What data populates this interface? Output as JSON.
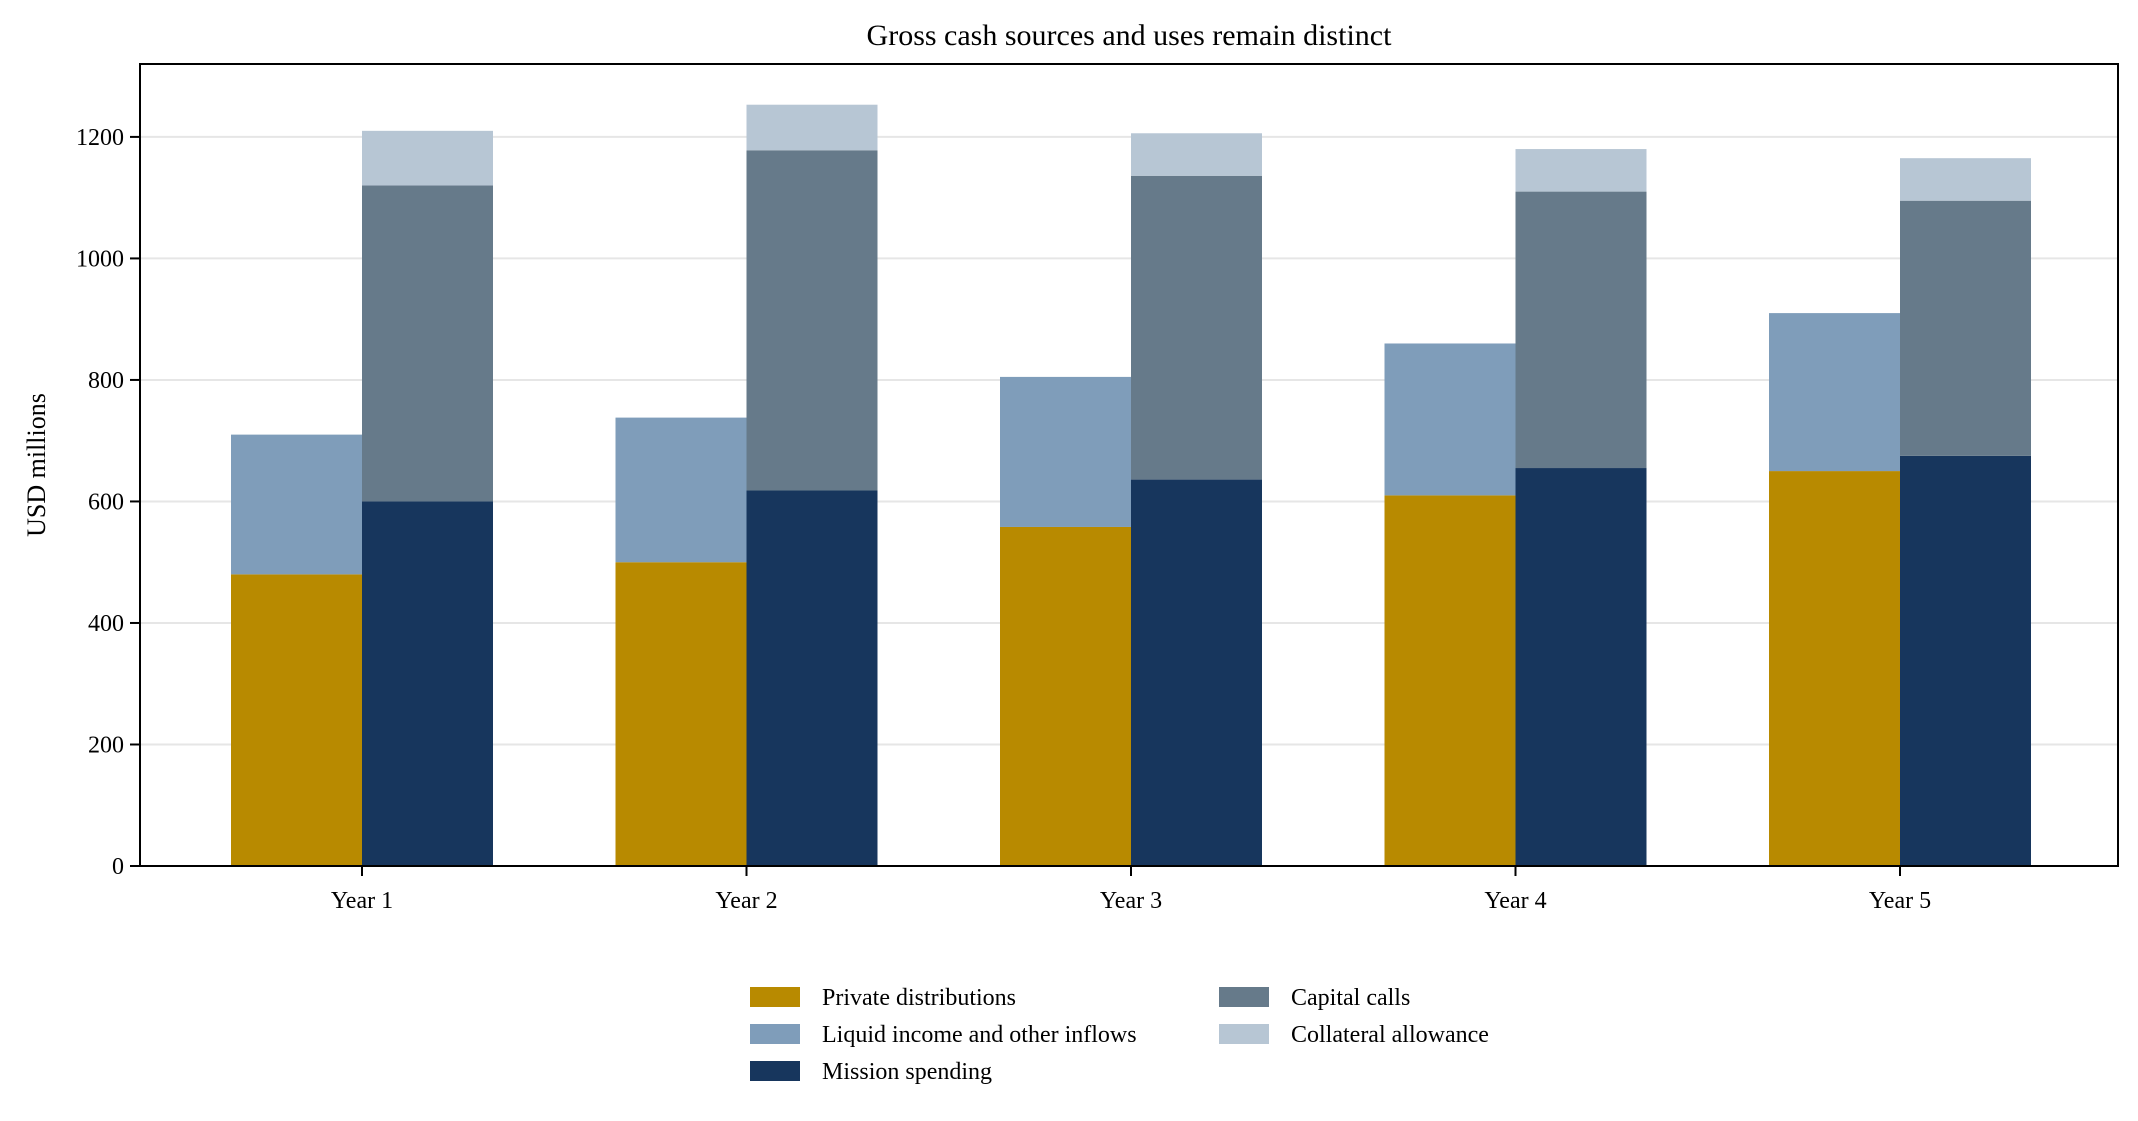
{
  "chart_data": {
    "type": "bar",
    "stacked": true,
    "grouped": true,
    "title": "Gross cash sources and uses remain distinct",
    "xlabel": "",
    "ylabel": "USD millions",
    "ylim": [
      0,
      1320
    ],
    "yticks": [
      0,
      200,
      400,
      600,
      800,
      1000,
      1200
    ],
    "grid": "horizontal",
    "legend_position": "bottom-center",
    "categories": [
      "Year 1",
      "Year 2",
      "Year 3",
      "Year 4",
      "Year 5"
    ],
    "groups": [
      {
        "name": "sources",
        "series": [
          {
            "name": "Private distributions",
            "color": "#b88a00",
            "values": [
              480,
              500,
              558,
              610,
              650
            ]
          },
          {
            "name": "Liquid income and other inflows",
            "color": "#7f9dba",
            "values": [
              230,
              238,
              247,
              250,
              260
            ]
          }
        ]
      },
      {
        "name": "uses",
        "series": [
          {
            "name": "Mission spending",
            "color": "#17365d",
            "values": [
              600,
              618,
              636,
              655,
              675
            ]
          },
          {
            "name": "Capital calls",
            "color": "#667a8a",
            "values": [
              520,
              560,
              500,
              455,
              420
            ]
          },
          {
            "name": "Collateral allowance",
            "color": "#b7c6d4",
            "values": [
              90,
              75,
              70,
              70,
              70
            ]
          }
        ]
      }
    ],
    "legend": [
      {
        "label": "Private distributions",
        "color": "#b88a00"
      },
      {
        "label": "Liquid income and other inflows",
        "color": "#7f9dba"
      },
      {
        "label": "Mission spending",
        "color": "#17365d"
      },
      {
        "label": "Capital calls",
        "color": "#667a8a"
      },
      {
        "label": "Collateral allowance",
        "color": "#b7c6d4"
      }
    ]
  }
}
